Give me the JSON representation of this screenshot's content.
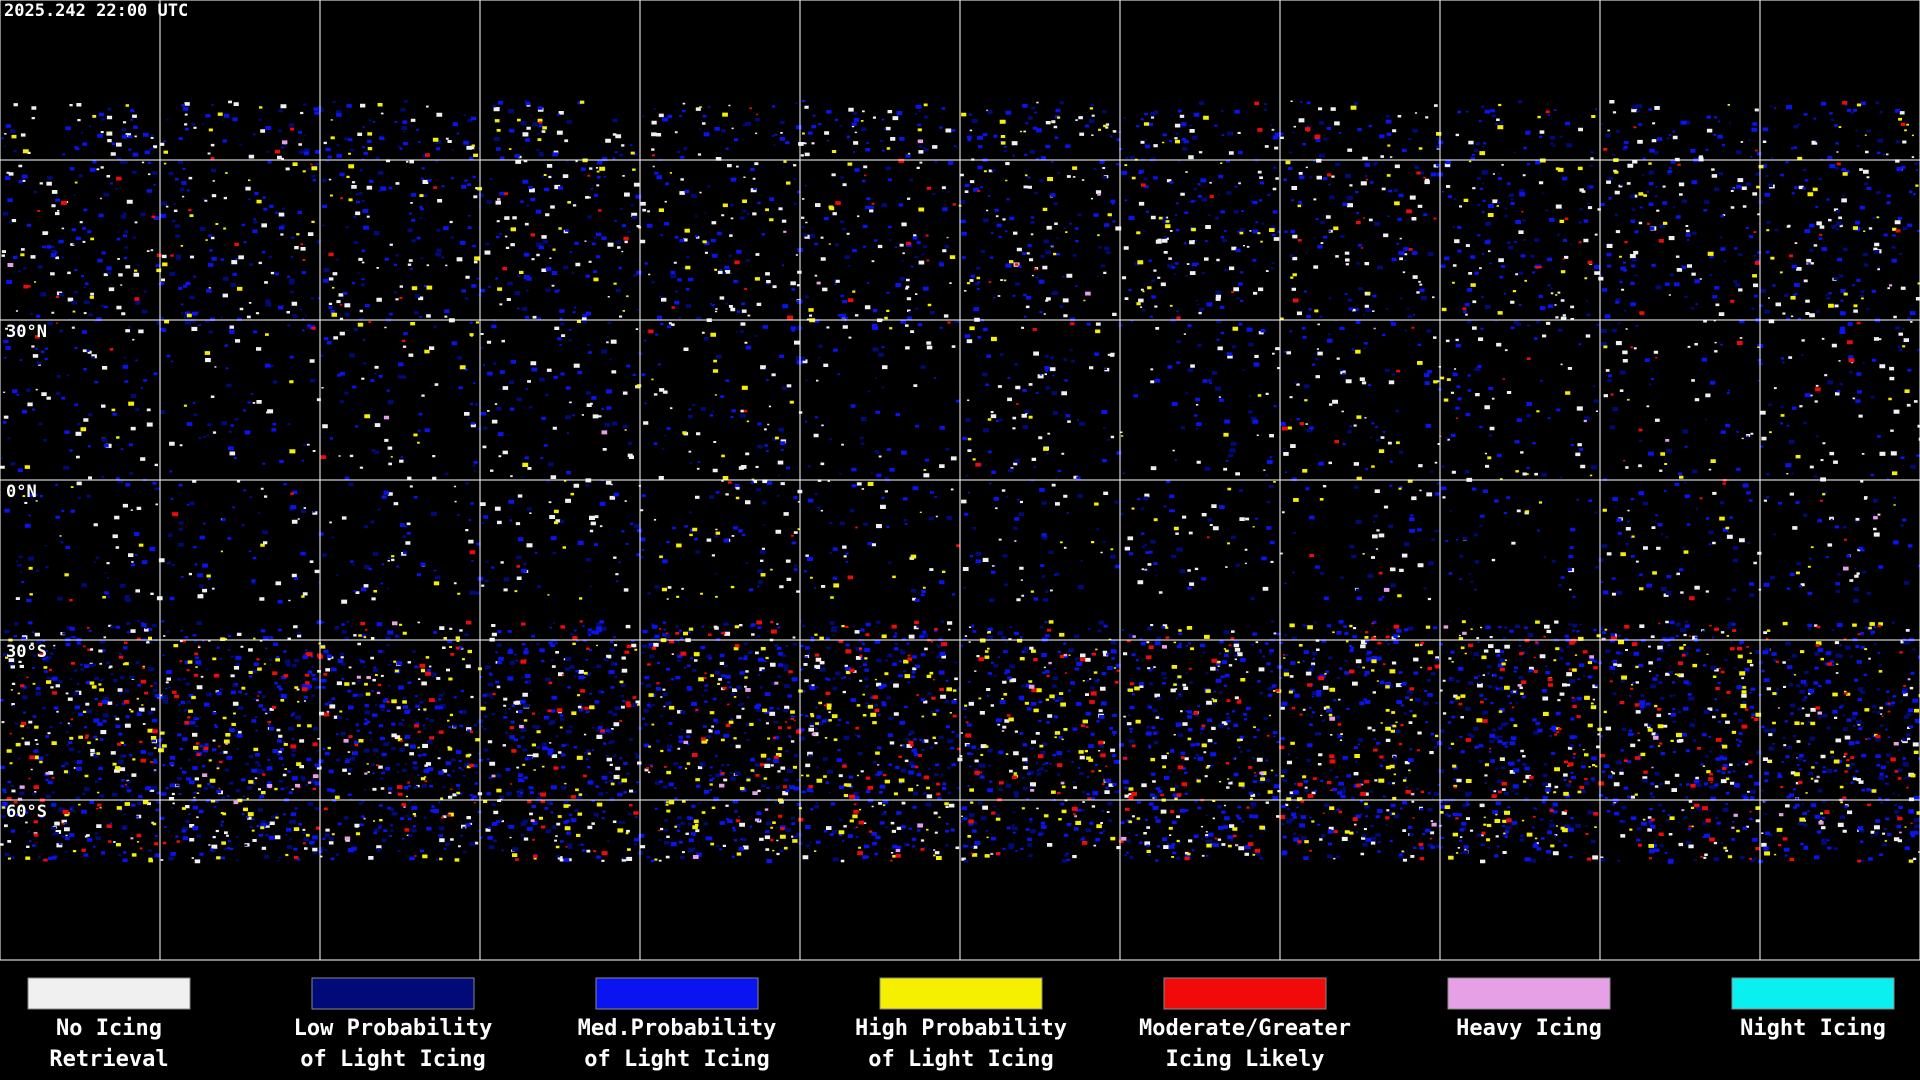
{
  "timestamp": "2025.242 22:00 UTC",
  "latitude_labels": [
    "30°N",
    "0°N",
    "30°S",
    "60°S"
  ],
  "legend": [
    {
      "label_lines": [
        "No Icing",
        "Retrieval"
      ],
      "color": "#f0f0f0"
    },
    {
      "label_lines": [
        "Low Probability",
        "of Light Icing"
      ],
      "color": "#000a78"
    },
    {
      "label_lines": [
        "Med.Probability",
        "of Light Icing"
      ],
      "color": "#0a14f0"
    },
    {
      "label_lines": [
        "High Probability",
        "of Light Icing"
      ],
      "color": "#f5f000"
    },
    {
      "label_lines": [
        "Moderate/Greater",
        "Icing Likely"
      ],
      "color": "#f00a0a"
    },
    {
      "label_lines": [
        "Heavy Icing"
      ],
      "color": "#e6a0e6"
    },
    {
      "label_lines": [
        "Night Icing"
      ],
      "color": "#0af0f0"
    }
  ]
}
